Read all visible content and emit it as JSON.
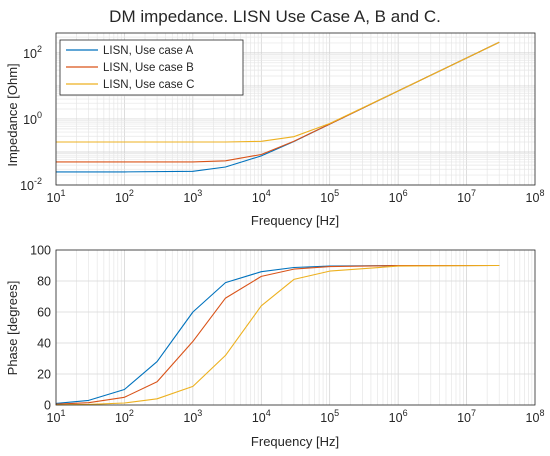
{
  "title": "DM impedance. LISN Use Case A, B and C.",
  "colors": {
    "case_a": "#0072BD",
    "case_b": "#D95319",
    "case_c": "#EDB120",
    "axis": "#262626",
    "grid": "#d9d9d9"
  },
  "chart_data": [
    {
      "type": "line",
      "title": "DM impedance. LISN Use Case A, B and C.",
      "xlabel": "Frequency [Hz]",
      "ylabel": "Impedance [Ohm]",
      "xscale": "log",
      "yscale": "log",
      "xlim": [
        10,
        100000000
      ],
      "ylim": [
        0.01,
        400
      ],
      "grid": true,
      "legend": "top-left",
      "x_tick_labels": [
        "10^1",
        "10^2",
        "10^3",
        "10^4",
        "10^5",
        "10^6",
        "10^7",
        "10^8"
      ],
      "y_tick_labels": [
        "10^-2",
        "10^0",
        "10^2"
      ],
      "x": [
        10,
        100,
        1000,
        3000,
        10000,
        30000,
        100000,
        1000000,
        10000000,
        30000000
      ],
      "series": [
        {
          "name": "LISN, Use case A",
          "values": [
            0.025,
            0.025,
            0.026,
            0.035,
            0.076,
            0.208,
            0.7,
            7.0,
            70,
            210
          ]
        },
        {
          "name": "LISN, Use case B",
          "values": [
            0.05,
            0.05,
            0.05,
            0.054,
            0.084,
            0.212,
            0.7,
            7.0,
            70,
            210
          ]
        },
        {
          "name": "LISN, Use case C",
          "values": [
            0.2,
            0.2,
            0.2,
            0.201,
            0.21,
            0.29,
            0.73,
            7.0,
            70,
            210
          ]
        }
      ]
    },
    {
      "type": "line",
      "xlabel": "Frequency [Hz]",
      "ylabel": "Phase [degrees]",
      "xscale": "log",
      "xlim": [
        10,
        100000000
      ],
      "ylim": [
        0,
        100
      ],
      "y_ticks": [
        0,
        20,
        40,
        60,
        80,
        100
      ],
      "x_tick_labels": [
        "10^1",
        "10^2",
        "10^3",
        "10^4",
        "10^5",
        "10^6",
        "10^7",
        "10^8"
      ],
      "grid": true,
      "x": [
        10,
        30,
        100,
        300,
        1000,
        3000,
        10000,
        30000,
        100000,
        1000000,
        30000000
      ],
      "series": [
        {
          "name": "LISN, Use case A",
          "values": [
            1.0,
            3.0,
            10.0,
            28.0,
            60.0,
            79.0,
            86.0,
            88.7,
            89.6,
            89.96,
            90.0
          ]
        },
        {
          "name": "LISN, Use case B",
          "values": [
            0.5,
            1.5,
            5.0,
            15.0,
            41.0,
            69.0,
            83.0,
            87.7,
            89.3,
            89.93,
            90.0
          ]
        },
        {
          "name": "LISN, Use case C",
          "values": [
            0.1,
            0.4,
            1.3,
            4.0,
            12.0,
            32.0,
            64.0,
            81.0,
            86.4,
            89.6,
            90.0
          ]
        }
      ]
    }
  ]
}
